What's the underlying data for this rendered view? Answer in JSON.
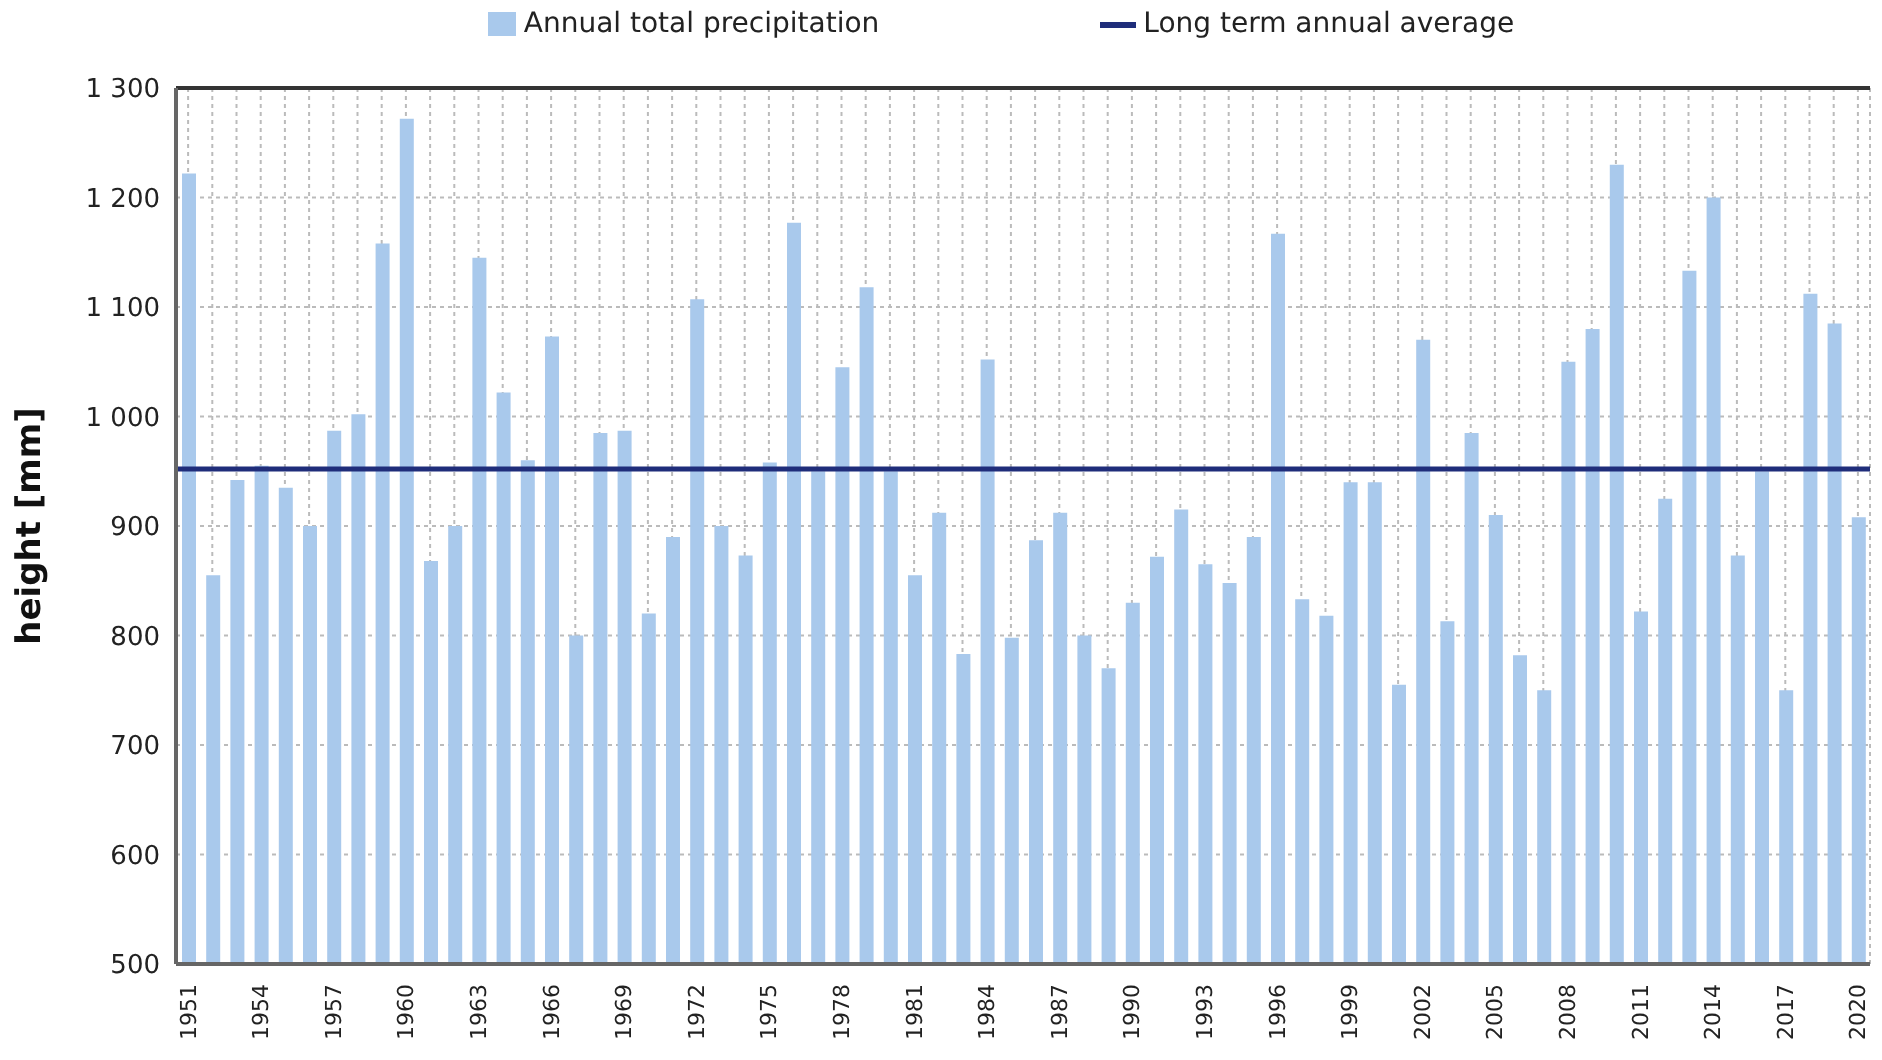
{
  "chart_data": {
    "type": "bar",
    "ylabel": "height [mm]",
    "categories": [
      "1951",
      null,
      null,
      "1954",
      null,
      null,
      "1957",
      null,
      null,
      "1960",
      null,
      null,
      "1963",
      null,
      null,
      "1966",
      null,
      null,
      "1969",
      null,
      null,
      "1972",
      null,
      null,
      "1975",
      null,
      null,
      "1978",
      null,
      null,
      "1981",
      null,
      null,
      "1984",
      null,
      null,
      "1987",
      null,
      null,
      "1990",
      null,
      null,
      "1993",
      null,
      null,
      "1996",
      null,
      null,
      "1999",
      null,
      null,
      "2002",
      null,
      null,
      "2005",
      null,
      null,
      "2008",
      null,
      null,
      "2011",
      null,
      null,
      "2014",
      null,
      null,
      "2017",
      null,
      null,
      "2020"
    ],
    "series": [
      {
        "name": "Annual total precipitation",
        "color": "#a9c9ec",
        "values": [
          1222,
          855,
          942,
          955,
          935,
          900,
          987,
          1002,
          1158,
          1272,
          868,
          900,
          1145,
          1022,
          960,
          1073,
          800,
          985,
          987,
          820,
          890,
          1107,
          900,
          873,
          958,
          1177,
          950,
          1045,
          1118,
          950,
          855,
          912,
          783,
          1052,
          798,
          887,
          912,
          800,
          770,
          830,
          872,
          915,
          865,
          848,
          890,
          1167,
          833,
          818,
          940,
          940,
          755,
          1070,
          813,
          985,
          910,
          782,
          750,
          1050,
          1080,
          1230,
          822,
          925,
          1133,
          1200,
          873,
          950,
          750,
          1112,
          1085,
          908
        ]
      }
    ],
    "ref_lines": [
      {
        "axis": "y",
        "value": 952,
        "label": "Long term annual average",
        "color": "#1f2d7a"
      }
    ],
    "ylim": [
      500,
      1300
    ],
    "yticks": [
      500,
      600,
      700,
      800,
      900,
      {
        "value": 1000,
        "label": "1 000"
      },
      {
        "value": 1100,
        "label": "1 100"
      },
      {
        "value": 1200,
        "label": "1 200"
      },
      {
        "value": 1300,
        "label": "1 300"
      }
    ],
    "grid": true,
    "legend": "top"
  }
}
